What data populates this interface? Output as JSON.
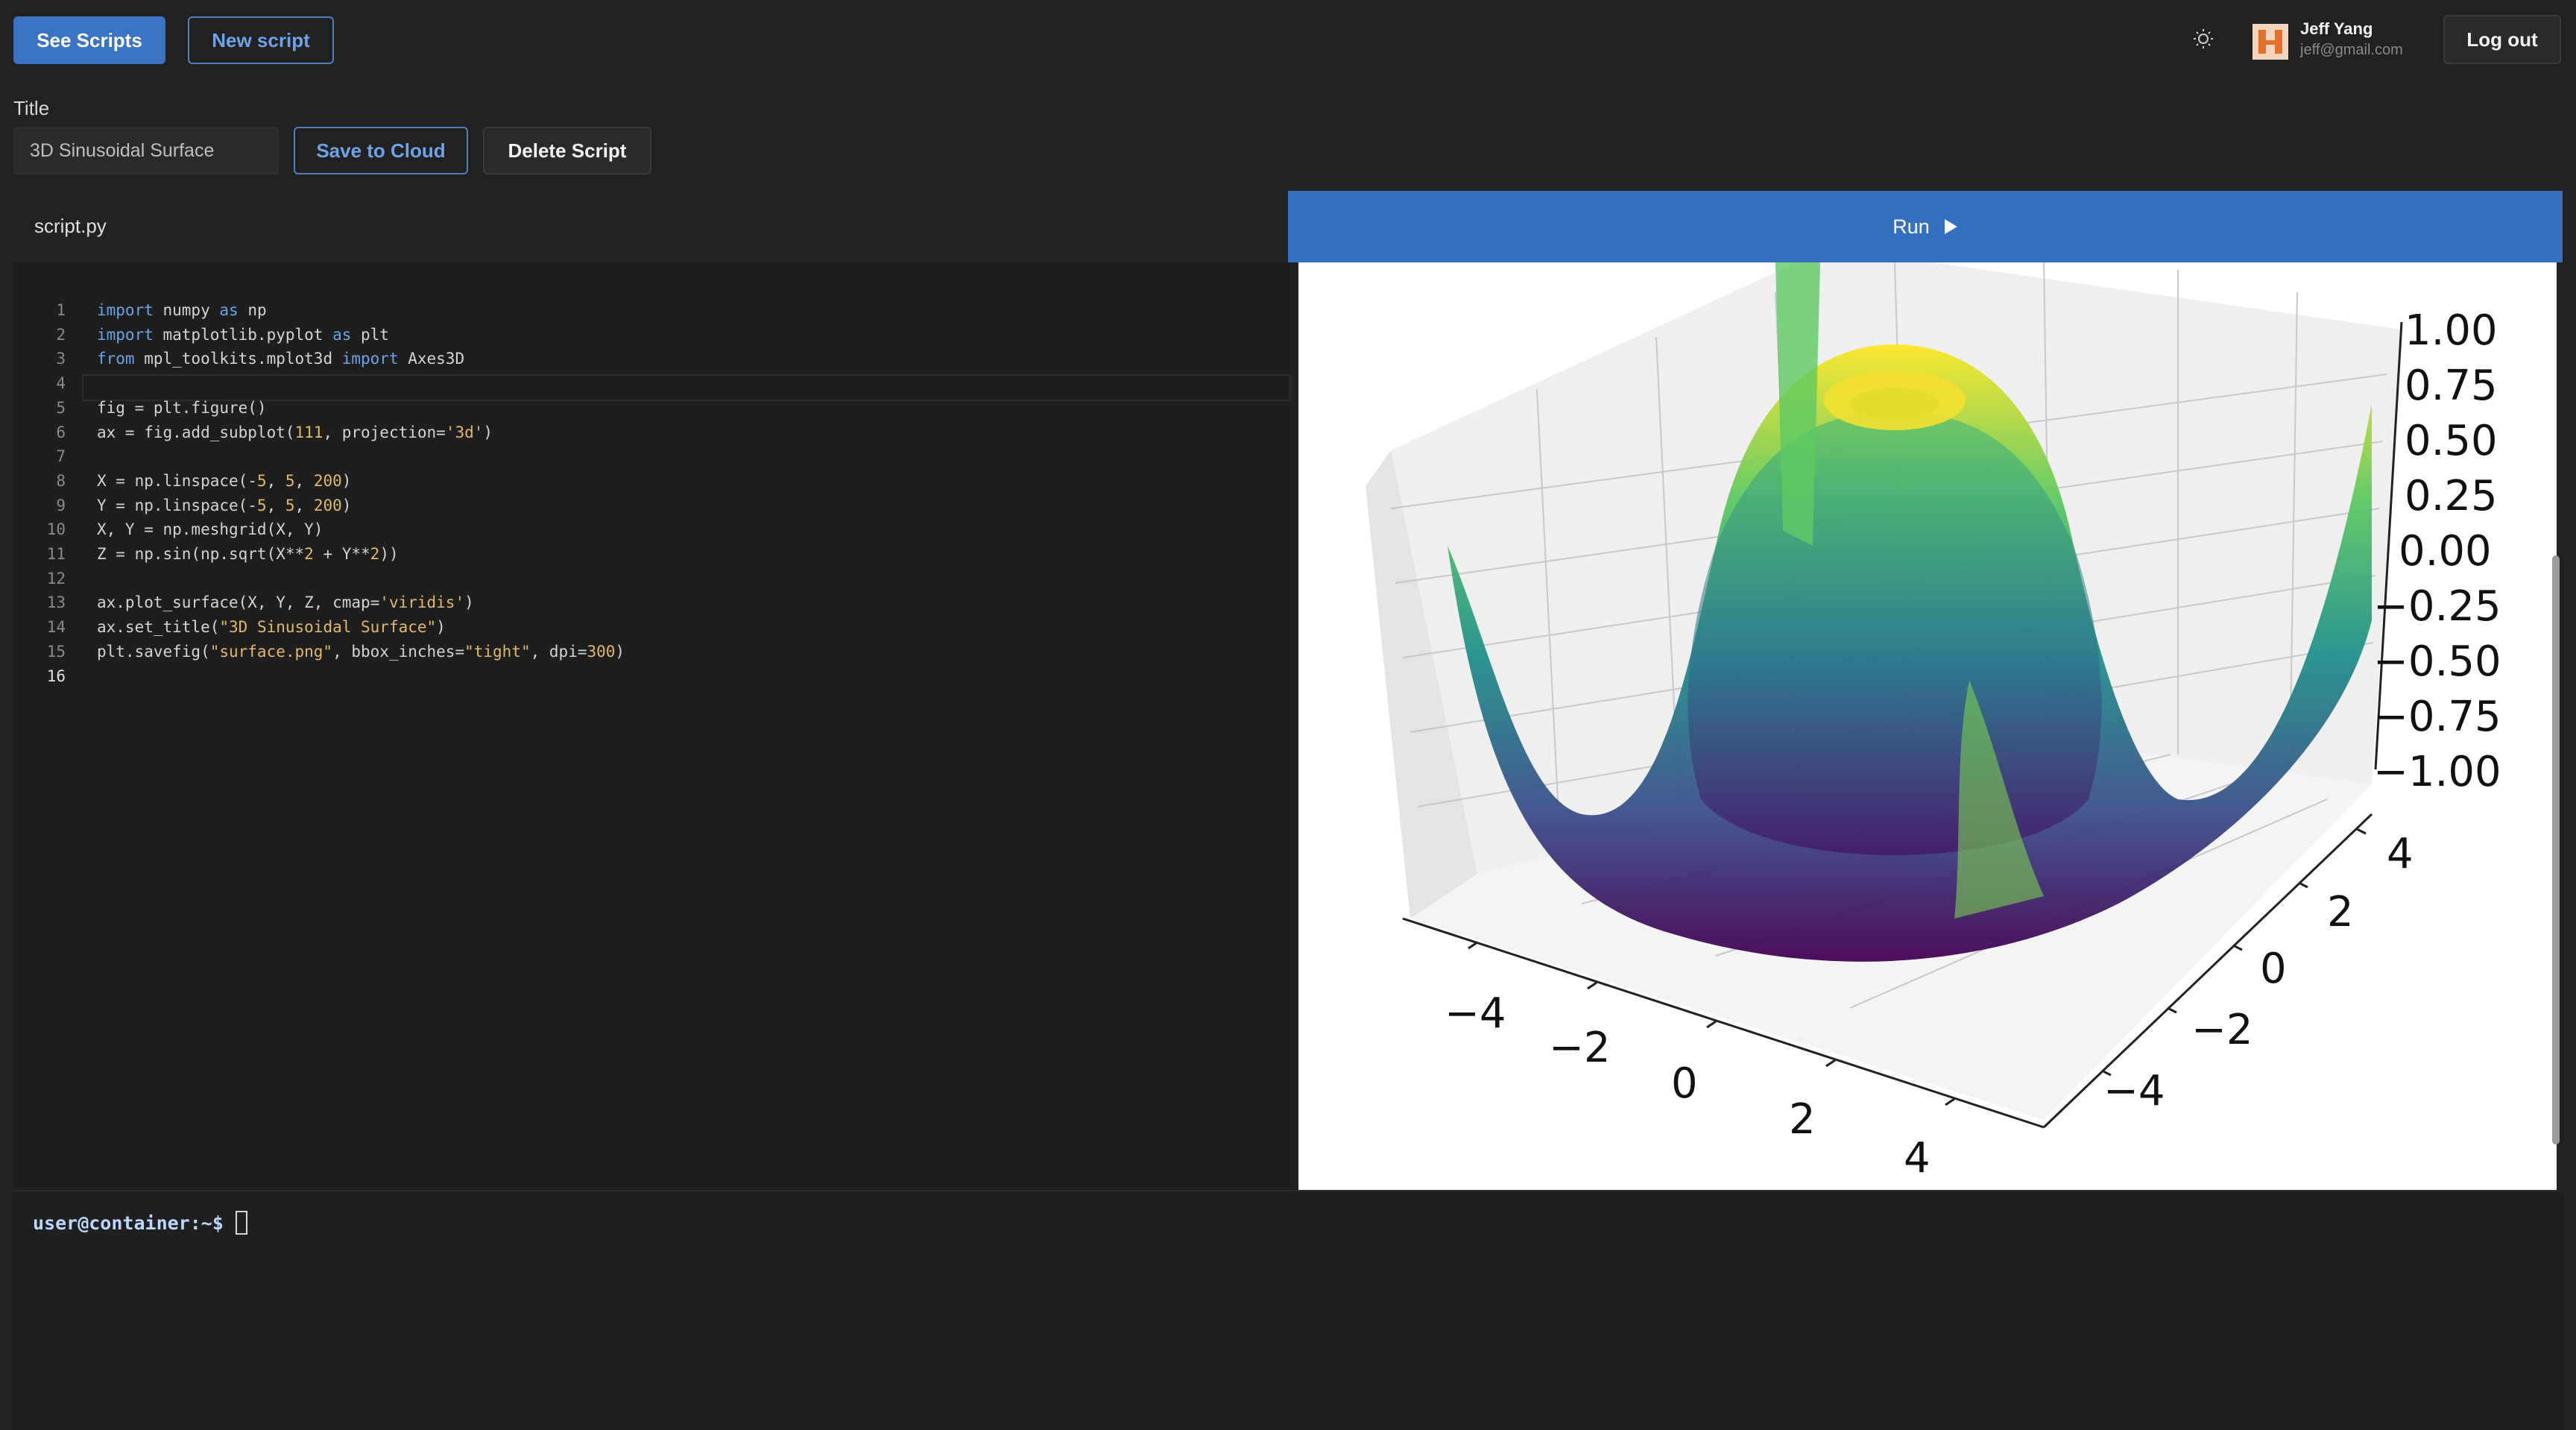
{
  "top_buttons": {
    "see_scripts": "See Scripts",
    "new_script": "New script",
    "logout": "Log out"
  },
  "user": {
    "name": "Jeff Yang",
    "email": "jeff@gmail.com"
  },
  "title_field": {
    "label": "Title",
    "value": "3D Sinusoidal Surface"
  },
  "actions": {
    "save": "Save to Cloud",
    "delete": "Delete Script"
  },
  "editor": {
    "tab": "script.py",
    "lines": [
      "import numpy as np",
      "import matplotlib.pyplot as plt",
      "from mpl_toolkits.mplot3d import Axes3D",
      "",
      "fig = plt.figure()",
      "ax = fig.add_subplot(111, projection='3d')",
      "",
      "X = np.linspace(-5, 5, 200)",
      "Y = np.linspace(-5, 5, 200)",
      "X, Y = np.meshgrid(X, Y)",
      "Z = np.sin(np.sqrt(X**2 + Y**2))",
      "",
      "ax.plot_surface(X, Y, Z, cmap='viridis')",
      "ax.set_title(\"3D Sinusoidal Surface\")",
      "plt.savefig(\"surface.png\", bbox_inches=\"tight\", dpi=300)",
      ""
    ]
  },
  "run": {
    "label": "Run"
  },
  "plot": {
    "z_ticks": [
      "1.00",
      "0.75",
      "0.50",
      "0.25",
      "0.00",
      "−0.25",
      "−0.50",
      "−0.75",
      "−1.00"
    ],
    "x_ticks": [
      "−4",
      "−2",
      "0",
      "2",
      "4"
    ],
    "y_ticks": [
      "4",
      "2",
      "0",
      "−2",
      "−4"
    ]
  },
  "terminal": {
    "prompt": "user@container:~$"
  },
  "icons": {
    "theme": "sun-icon",
    "run": "play-icon"
  },
  "colors": {
    "accent": "#3a73c4",
    "background": "#212121"
  }
}
